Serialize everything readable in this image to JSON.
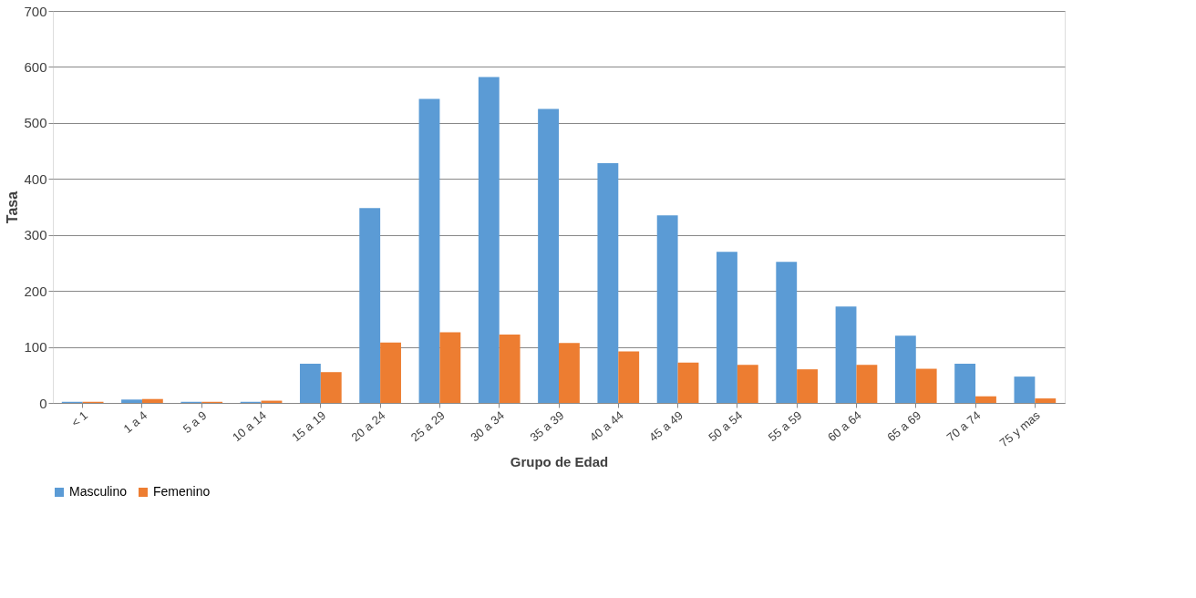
{
  "chart_data": {
    "type": "bar",
    "xlabel": "Grupo de Edad",
    "ylabel": "Tasa",
    "categories": [
      "< 1",
      "1 a 4",
      "5 a 9",
      "10 a 14",
      "15 a 19",
      "20 a 24",
      "25 a 29",
      "30 a 34",
      "35 a 39",
      "40 a 44",
      "45 a 49",
      "50 a 54",
      "55 a 59",
      "60 a 64",
      "65 a 69",
      "70 a 74",
      "75  y mas"
    ],
    "series": [
      {
        "name": "Masculino",
        "color": "#5b9bd5",
        "values": [
          2,
          6,
          2,
          2,
          70,
          348,
          543,
          582,
          525,
          428,
          335,
          270,
          252,
          172,
          120,
          70,
          47
        ]
      },
      {
        "name": "Femenino",
        "color": "#ed7d31",
        "values": [
          2,
          7,
          2,
          4,
          55,
          108,
          126,
          122,
          107,
          92,
          72,
          68,
          60,
          68,
          61,
          12,
          8
        ]
      }
    ],
    "ylim": [
      0,
      700
    ],
    "yticks": [
      0,
      100,
      200,
      300,
      400,
      500,
      600,
      700
    ],
    "grid": "y",
    "legend": "bottom"
  }
}
